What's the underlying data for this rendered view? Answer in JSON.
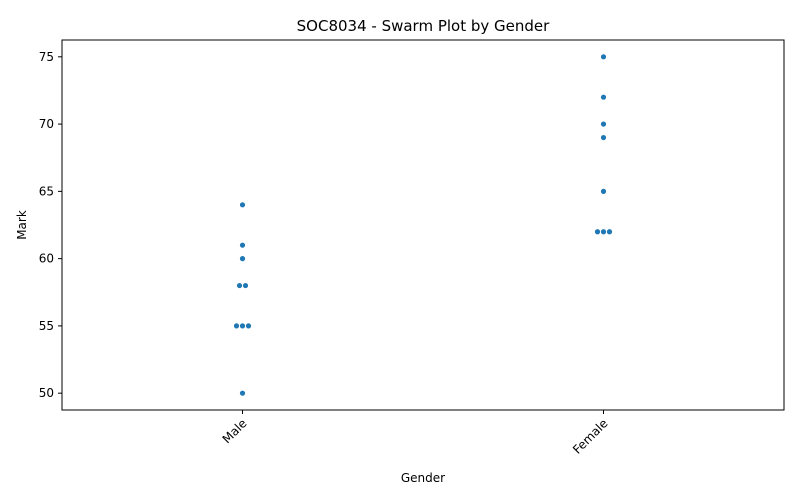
{
  "chart_data": {
    "type": "scatter",
    "title": "SOC8034 - Swarm Plot by Gender",
    "xlabel": "Gender",
    "ylabel": "Mark",
    "categories": [
      "Male",
      "Female"
    ],
    "ylim": [
      48.75,
      76.25
    ],
    "yticks": [
      50,
      55,
      60,
      65,
      70,
      75
    ],
    "grid": false,
    "legend": false,
    "point_color": "#1f77b4",
    "series": [
      {
        "category": "Male",
        "values": [
          64,
          61,
          60,
          58,
          58,
          55,
          55,
          55,
          50
        ]
      },
      {
        "category": "Female",
        "values": [
          75,
          72,
          70,
          69,
          65,
          62,
          62,
          62
        ]
      }
    ]
  }
}
